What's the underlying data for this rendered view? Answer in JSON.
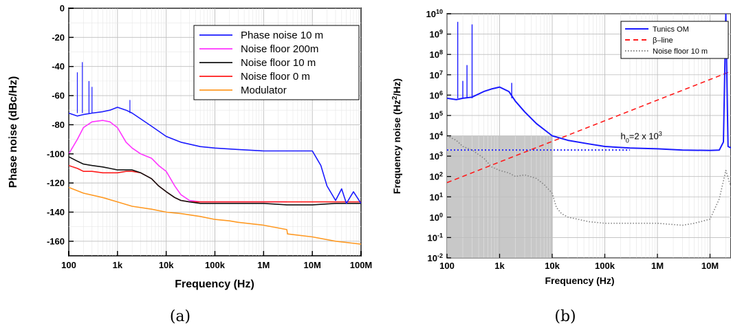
{
  "colors": {
    "blue": "#1a1aff",
    "magenta": "#ff33ff",
    "black": "#111111",
    "red": "#ff1a1a",
    "orange": "#ff9922",
    "gray": "#808080",
    "shade": "#c8c8c8"
  },
  "chart_data": [
    {
      "type": "line",
      "caption": "(a)",
      "xlabel": "Frequency (Hz)",
      "ylabel": "Phase noise (dBc/Hz)",
      "xscale": "log",
      "xlim": [
        100,
        100000000
      ],
      "ylim": [
        -170,
        0
      ],
      "x_ticks": [
        100,
        1000,
        10000,
        100000,
        1000000,
        10000000,
        100000000
      ],
      "x_tick_labels": [
        "100",
        "1k",
        "10k",
        "100k",
        "1M",
        "10M",
        "100M"
      ],
      "y_ticks": [
        0,
        -20,
        -40,
        -60,
        -80,
        -100,
        -120,
        -140,
        -160
      ],
      "y_tick_labels": [
        "0",
        "-20",
        "-40",
        "-60",
        "-80",
        "-100",
        "-120",
        "-140",
        "-160"
      ],
      "grid": true,
      "legend_position": "top-right",
      "series": [
        {
          "name": "Phase noise 10 m",
          "color": "#1a1aff",
          "x": [
            100,
            150,
            200,
            300,
            500,
            700,
            1000,
            1500,
            2000,
            3000,
            5000,
            10000,
            20000,
            50000,
            100000,
            300000,
            1000000,
            3000000,
            10000000,
            15000000,
            20000000,
            30000000,
            40000000,
            50000000,
            70000000,
            100000000
          ],
          "y": [
            -72,
            -74,
            -73,
            -72,
            -71,
            -70,
            -68,
            -70,
            -72,
            -76,
            -81,
            -88,
            -92,
            -95,
            -96,
            -97,
            -98,
            -98,
            -98,
            -108,
            -122,
            -132,
            -124,
            -134,
            -126,
            -134
          ],
          "spikes": [
            {
              "x": 150,
              "y": -44
            },
            {
              "x": 190,
              "y": -37
            },
            {
              "x": 260,
              "y": -50
            },
            {
              "x": 300,
              "y": -54
            },
            {
              "x": 1800,
              "y": -63
            }
          ]
        },
        {
          "name": "Noise floor 200m",
          "color": "#ff33ff",
          "x": [
            100,
            150,
            200,
            300,
            500,
            700,
            1000,
            1500,
            2000,
            3000,
            5000,
            7000,
            10000,
            15000,
            20000,
            30000,
            50000,
            100000,
            300000,
            1000000,
            3000000
          ],
          "y": [
            -100,
            -90,
            -82,
            -78,
            -77,
            -78,
            -82,
            -92,
            -96,
            -100,
            -103,
            -108,
            -112,
            -122,
            -128,
            -132,
            -133,
            -133,
            -133,
            -133,
            -133
          ]
        },
        {
          "name": "Noise floor 10 m",
          "color": "#111111",
          "x": [
            100,
            150,
            200,
            300,
            500,
            700,
            1000,
            1500,
            2000,
            3000,
            5000,
            7000,
            10000,
            15000,
            20000,
            30000,
            50000,
            100000,
            300000,
            1000000,
            3000000,
            10000000,
            30000000,
            100000000
          ],
          "y": [
            -102,
            -105,
            -107,
            -108,
            -109,
            -110,
            -111,
            -111,
            -111,
            -113,
            -117,
            -122,
            -126,
            -130,
            -132,
            -133,
            -134,
            -134,
            -134,
            -134,
            -135,
            -135,
            -134,
            -134
          ]
        },
        {
          "name": "Noise floor 0 m",
          "color": "#ff1a1a",
          "x": [
            100,
            150,
            200,
            300,
            500,
            700,
            1000,
            1500,
            2000,
            3000,
            5000,
            7000,
            10000,
            15000,
            20000,
            30000,
            50000,
            100000,
            300000,
            1000000,
            3000000,
            10000000,
            30000000,
            100000000
          ],
          "y": [
            -108,
            -110,
            -112,
            -112,
            -113,
            -113,
            -113,
            -112,
            -112,
            -113,
            -117,
            -122,
            -126,
            -130,
            -132,
            -133,
            -133,
            -133,
            -133,
            -133,
            -133,
            -133,
            -133,
            -133
          ]
        },
        {
          "name": "Modulator",
          "color": "#ff9922",
          "x": [
            100,
            200,
            500,
            1000,
            2000,
            5000,
            10000,
            20000,
            50000,
            100000,
            200000,
            300000,
            1000000,
            3000000,
            3100000,
            10000000,
            30000000,
            100000000
          ],
          "y": [
            -123,
            -127,
            -130,
            -133,
            -136,
            -138,
            -140,
            -141,
            -143,
            -145,
            -146,
            -147,
            -149,
            -152,
            -155,
            -157,
            -160,
            -162
          ]
        }
      ]
    },
    {
      "type": "line",
      "caption": "(b)",
      "xlabel": "Frequency (Hz)",
      "ylabel": "Frequency noise (Hz²/Hz)",
      "xscale": "log",
      "yscale": "log",
      "xlim": [
        100,
        50000000
      ],
      "ylim": [
        0.01,
        10000000000
      ],
      "x_ticks": [
        100,
        1000,
        10000,
        100000,
        1000000,
        10000000
      ],
      "x_tick_labels": [
        "100",
        "1k",
        "10k",
        "100k",
        "1M",
        "10M"
      ],
      "y_ticks": [
        0.01,
        0.1,
        1,
        10,
        100,
        1000,
        10000,
        100000,
        1000000,
        10000000,
        100000000,
        1000000000,
        10000000000
      ],
      "y_tick_labels": [
        {
          "base": "10",
          "exp": "-2"
        },
        {
          "base": "10",
          "exp": "-1"
        },
        {
          "base": "10",
          "exp": "0"
        },
        {
          "base": "10",
          "exp": "1"
        },
        {
          "base": "10",
          "exp": "2"
        },
        {
          "base": "10",
          "exp": "3"
        },
        {
          "base": "10",
          "exp": "4"
        },
        {
          "base": "10",
          "exp": "5"
        },
        {
          "base": "10",
          "exp": "6"
        },
        {
          "base": "10",
          "exp": "7"
        },
        {
          "base": "10",
          "exp": "8"
        },
        {
          "base": "10",
          "exp": "9"
        },
        {
          "base": "10",
          "exp": "10"
        }
      ],
      "grid": true,
      "legend_position": "top-right",
      "shaded_region": {
        "x": [
          100,
          10000
        ],
        "y": [
          0.01,
          10000
        ]
      },
      "annotation": {
        "text_main": "h",
        "text_sub": "0",
        "text_rest": "=2 x 10",
        "text_sup": "3",
        "x": 200000,
        "y": 10000
      },
      "reference_line": {
        "y": 2000,
        "x": [
          100,
          300000
        ],
        "color": "#1a1aff",
        "style": "dotted"
      },
      "series": [
        {
          "name": "Tunics OM",
          "color": "#1a1aff",
          "style": "solid",
          "x": [
            100,
            150,
            200,
            300,
            500,
            700,
            1000,
            1500,
            2000,
            3000,
            5000,
            10000,
            20000,
            50000,
            100000,
            300000,
            1000000,
            3000000,
            10000000,
            15000000,
            18000000,
            20000000,
            22000000,
            30000000,
            50000000
          ],
          "y": [
            700000,
            600000,
            700000,
            800000,
            1500000,
            2000000,
            2500000,
            1500000,
            500000,
            150000,
            40000,
            10000,
            6000,
            4000,
            3000,
            2500,
            2300,
            2000,
            1900,
            2000,
            5000,
            10000000000,
            3000,
            2000,
            2000
          ],
          "spikes": [
            {
              "x": 160,
              "y": 4000000000
            },
            {
              "x": 200,
              "y": 5000000
            },
            {
              "x": 240,
              "y": 30000000
            },
            {
              "x": 300,
              "y": 3000000000
            },
            {
              "x": 1700,
              "y": 4000000
            }
          ]
        },
        {
          "name": "β–line",
          "color": "#ff1a1a",
          "style": "dashed",
          "x": [
            100,
            50000000
          ],
          "y": [
            50,
            30000000
          ]
        },
        {
          "name": "Noise floor 10 m",
          "color": "#808080",
          "style": "dotted",
          "x": [
            100,
            150,
            200,
            300,
            500,
            700,
            1000,
            1500,
            2000,
            3000,
            5000,
            7000,
            10000,
            12000,
            15000,
            20000,
            30000,
            50000,
            100000,
            300000,
            1000000,
            3000000,
            5000000,
            10000000,
            15000000,
            20000000,
            25000000,
            30000000,
            40000000,
            50000000
          ],
          "y": [
            10000,
            6000,
            3000,
            2000,
            800,
            300,
            200,
            150,
            100,
            120,
            80,
            40,
            15,
            3,
            1.5,
            1,
            0.8,
            0.6,
            0.5,
            0.5,
            0.5,
            0.4,
            0.5,
            0.8,
            8,
            200,
            30,
            10,
            30,
            500
          ]
        }
      ]
    }
  ]
}
